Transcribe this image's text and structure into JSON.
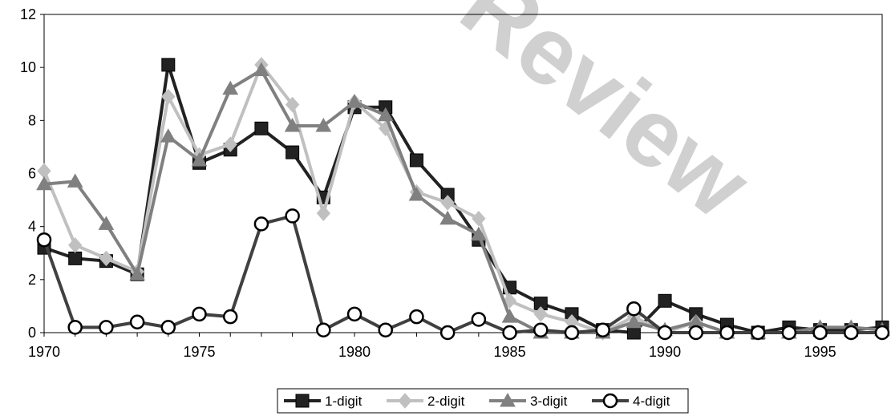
{
  "chart_data": {
    "type": "line",
    "title": "",
    "xlabel": "",
    "ylabel": "",
    "xlim": [
      1970,
      1997
    ],
    "ylim": [
      0,
      12
    ],
    "x_ticks": [
      1970,
      1975,
      1980,
      1985,
      1990,
      1995
    ],
    "y_ticks": [
      0,
      2,
      4,
      6,
      8,
      10,
      12
    ],
    "grid": false,
    "legend_position": "bottom",
    "watermark": "Review",
    "x": [
      1970,
      1971,
      1972,
      1973,
      1974,
      1975,
      1976,
      1977,
      1978,
      1979,
      1980,
      1981,
      1982,
      1983,
      1984,
      1985,
      1986,
      1987,
      1988,
      1989,
      1990,
      1991,
      1992,
      1993,
      1994,
      1995,
      1996,
      1997
    ],
    "series": [
      {
        "name": "1-digit",
        "color": "#222222",
        "marker": "square",
        "values": [
          3.2,
          2.8,
          2.7,
          2.2,
          10.1,
          6.4,
          6.9,
          7.7,
          6.8,
          5.1,
          8.5,
          8.5,
          6.5,
          5.2,
          3.5,
          1.7,
          1.1,
          0.7,
          0.1,
          0.0,
          1.2,
          0.7,
          0.3,
          0.0,
          0.2,
          0.1,
          0.1,
          0.2
        ]
      },
      {
        "name": "2-digit",
        "color": "#c0c0c0",
        "marker": "diamond",
        "values": [
          6.1,
          3.3,
          2.8,
          2.3,
          8.9,
          6.7,
          7.1,
          10.1,
          8.6,
          4.5,
          8.7,
          7.7,
          5.3,
          4.9,
          4.3,
          1.2,
          0.7,
          0.4,
          0.0,
          0.6,
          0.0,
          0.4,
          0.0,
          0.0,
          0.0,
          0.0,
          0.0,
          0.0
        ]
      },
      {
        "name": "3-digit",
        "color": "#808080",
        "marker": "triangle",
        "values": [
          5.6,
          5.7,
          4.1,
          2.2,
          7.4,
          6.5,
          9.2,
          9.9,
          7.8,
          7.8,
          8.7,
          8.2,
          5.2,
          4.3,
          3.7,
          0.6,
          0.0,
          0.0,
          0.0,
          0.4,
          0.1,
          0.4,
          0.0,
          0.0,
          0.0,
          0.2,
          0.2,
          0.1
        ]
      },
      {
        "name": "4-digit",
        "color": "#404040",
        "marker": "circle",
        "values": [
          3.5,
          0.2,
          0.2,
          0.4,
          0.2,
          0.7,
          0.6,
          4.1,
          4.4,
          0.1,
          0.7,
          0.1,
          0.6,
          0.0,
          0.5,
          0.0,
          0.1,
          0.0,
          0.1,
          0.9,
          0.0,
          0.0,
          0.0,
          0.0,
          0.0,
          0.0,
          0.0,
          0.0
        ]
      }
    ]
  }
}
